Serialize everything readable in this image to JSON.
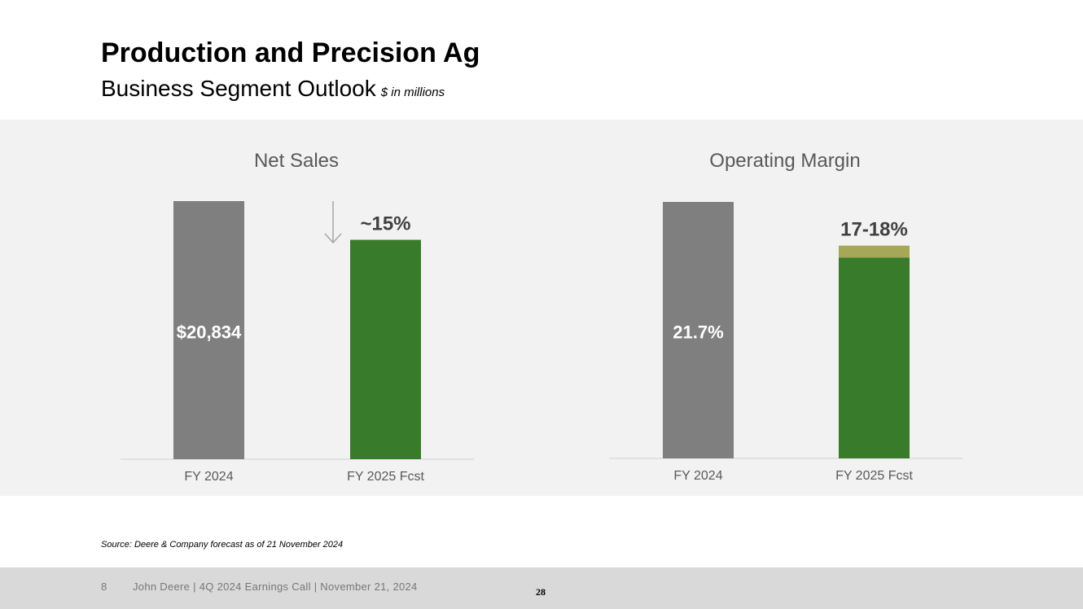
{
  "header": {
    "title": "Production and Precision Ag",
    "subtitle": "Business Segment Outlook",
    "unit_note": "$ in millions"
  },
  "chart_data": [
    {
      "type": "bar",
      "title": "Net Sales",
      "categories": [
        "FY 2024",
        "FY 2025 Fcst"
      ],
      "values": [
        20834,
        17709
      ],
      "data_labels": [
        "$20,834",
        "~15%"
      ],
      "annotation": "down arrow: ~15% decrease",
      "colors": [
        "#7f7f7f",
        "#387c2b"
      ]
    },
    {
      "type": "bar",
      "title": "Operating Margin",
      "categories": [
        "FY 2024",
        "FY 2025 Fcst"
      ],
      "values": [
        21.7,
        17
      ],
      "range_top": [
        null,
        18
      ],
      "data_labels": [
        "21.7%",
        "17-18%"
      ],
      "colors": [
        "#7f7f7f",
        "#387c2b",
        "#a6a857"
      ]
    }
  ],
  "source": "Source: Deere & Company forecast as of 21 November 2024",
  "footer": {
    "slide_number": "8",
    "text": "John Deere | 4Q 2024 Earnings Call | November 21, 2024",
    "page": "28"
  }
}
